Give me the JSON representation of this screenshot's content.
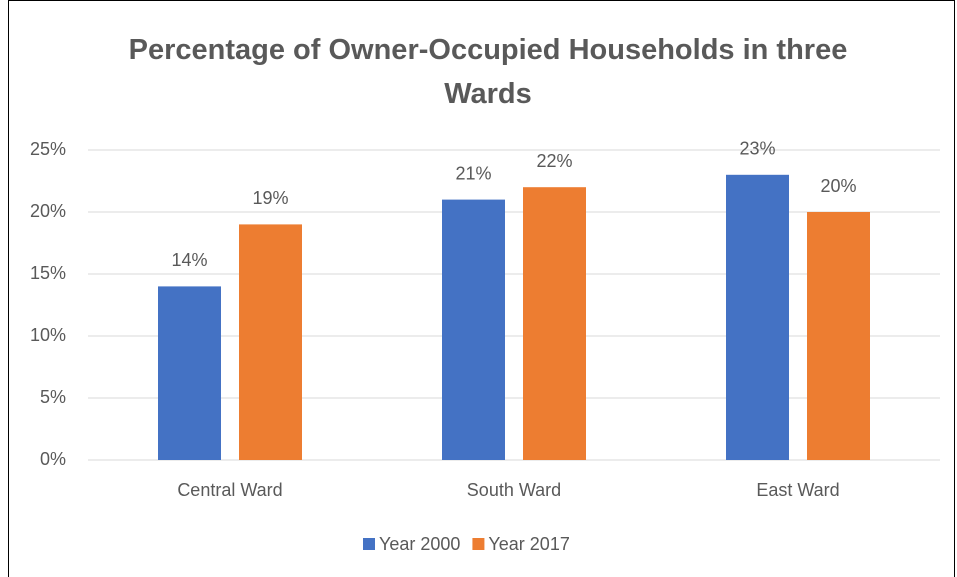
{
  "chart_data": {
    "type": "bar",
    "title": "Percentage of Owner-Occupied Households in three Wards",
    "categories": [
      "Central Ward",
      "South Ward",
      "East Ward"
    ],
    "series": [
      {
        "name": "Year 2000",
        "color": "#4472c4",
        "values": [
          14,
          21,
          23
        ],
        "value_labels": [
          "14%",
          "21%",
          "23%"
        ]
      },
      {
        "name": "Year 2017",
        "color": "#ed7d31",
        "values": [
          19,
          22,
          20
        ],
        "value_labels": [
          "19%",
          "22%",
          "20%"
        ]
      }
    ],
    "ylim": [
      0,
      25
    ],
    "yticks": [
      {
        "value": 0,
        "label": "0%"
      },
      {
        "value": 5,
        "label": "5%"
      },
      {
        "value": 10,
        "label": "10%"
      },
      {
        "value": 15,
        "label": "15%"
      },
      {
        "value": 20,
        "label": "20%"
      },
      {
        "value": 25,
        "label": "25%"
      }
    ],
    "grid": true,
    "legend": "bottom"
  }
}
